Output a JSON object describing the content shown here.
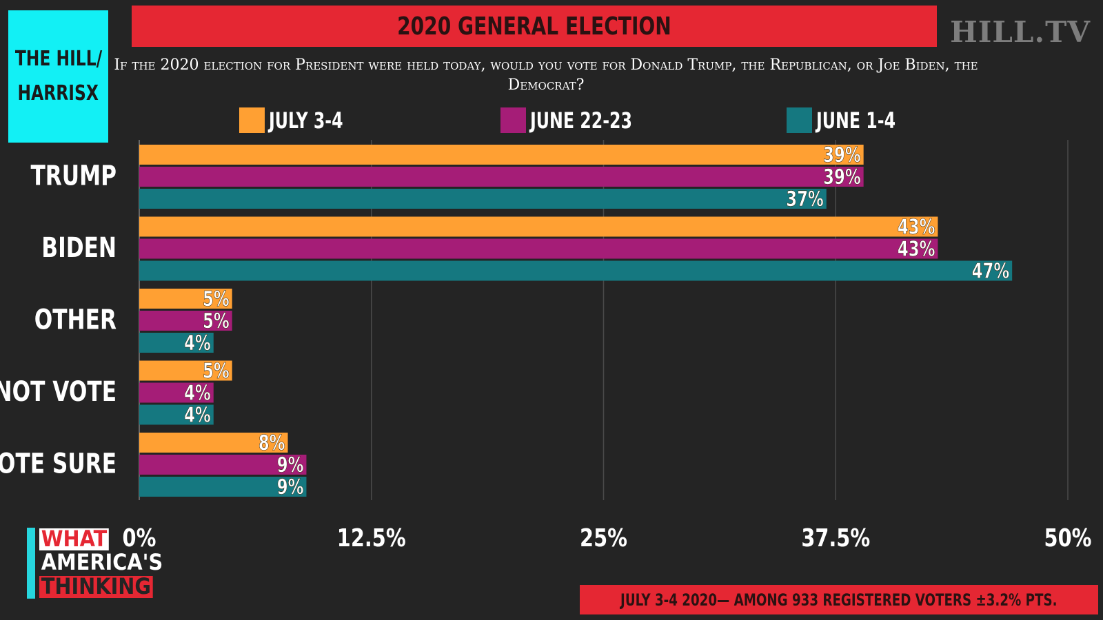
{
  "brand": {
    "line1": "THE HILL/",
    "line2": "HARRISX"
  },
  "title": "2020 GENERAL ELECTION",
  "network": "HILL.TV",
  "question": "If the 2020 election for President were held today, would you vote for Donald Trump, the Republican, or Joe Biden, the Democrat?",
  "colors": {
    "orange": "#ffa033",
    "purple": "#a51d77",
    "teal": "#157880",
    "red": "#e52733",
    "cyan": "#12f0f5"
  },
  "chart_data": {
    "type": "bar",
    "orientation": "horizontal",
    "categories": [
      "TRUMP",
      "BIDEN",
      "OTHER",
      "NOT VOTE",
      "NOTE SURE"
    ],
    "series": [
      {
        "name": "JULY 3-4",
        "color": "#ffa033",
        "values": [
          39,
          43,
          5,
          5,
          8
        ],
        "labels": [
          "39%",
          "43%",
          "5%",
          "5%",
          "8%"
        ]
      },
      {
        "name": "JUNE 22-23",
        "color": "#a51d77",
        "values": [
          39,
          43,
          5,
          4,
          9
        ],
        "labels": [
          "39%",
          "43%",
          "5%",
          "4%",
          "9%"
        ]
      },
      {
        "name": "JUNE 1-4",
        "color": "#157880",
        "values": [
          37,
          47,
          4,
          4,
          9
        ],
        "labels": [
          "37%",
          "47%",
          "4%",
          "4%",
          "9%"
        ]
      }
    ],
    "xlim": [
      0,
      50
    ],
    "xticks": [
      0,
      12.5,
      25,
      37.5,
      50
    ],
    "xtick_labels": [
      "0%",
      "12.5%",
      "25%",
      "37.5%",
      "50%"
    ],
    "grid": true,
    "legend": "top"
  },
  "footer": {
    "logo_line1": "WHAT",
    "logo_line2": "AMERICA'S",
    "logo_line3": "THINKING",
    "note": "JULY 3-4 2020— AMONG 933 REGISTERED VOTERS ±3.2% PTS."
  }
}
